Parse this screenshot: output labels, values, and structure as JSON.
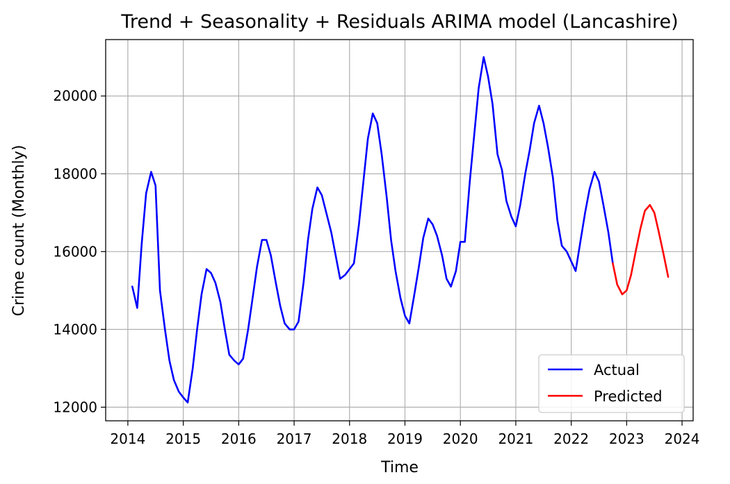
{
  "chart_data": {
    "type": "line",
    "title": "Trend + Seasonality + Residuals ARIMA model (Lancashire)",
    "xlabel": "Time",
    "ylabel": "Crime count (Monthly)",
    "xlim": [
      2013.6,
      2024.2
    ],
    "ylim": [
      11650,
      21450
    ],
    "xticks": [
      2014,
      2015,
      2016,
      2017,
      2018,
      2019,
      2020,
      2021,
      2022,
      2023,
      2024
    ],
    "xtick_labels": [
      "2014",
      "2015",
      "2016",
      "2017",
      "2018",
      "2019",
      "2020",
      "2021",
      "2022",
      "2023",
      "2024"
    ],
    "yticks": [
      12000,
      14000,
      16000,
      18000,
      20000
    ],
    "ytick_labels": [
      "12000",
      "14000",
      "16000",
      "18000",
      "20000"
    ],
    "grid": true,
    "legend_position": "lower-right",
    "series": [
      {
        "name": "Actual",
        "color": "#0000ff",
        "x": [
          2014.08,
          2014.17,
          2014.25,
          2014.33,
          2014.42,
          2014.5,
          2014.58,
          2014.67,
          2014.75,
          2014.83,
          2014.92,
          2015.0,
          2015.08,
          2015.17,
          2015.25,
          2015.33,
          2015.42,
          2015.5,
          2015.58,
          2015.67,
          2015.75,
          2015.83,
          2015.92,
          2016.0,
          2016.08,
          2016.17,
          2016.25,
          2016.33,
          2016.42,
          2016.5,
          2016.58,
          2016.67,
          2016.75,
          2016.83,
          2016.92,
          2017.0,
          2017.08,
          2017.17,
          2017.25,
          2017.33,
          2017.42,
          2017.5,
          2017.58,
          2017.67,
          2017.75,
          2017.83,
          2017.92,
          2018.0,
          2018.08,
          2018.17,
          2018.25,
          2018.33,
          2018.42,
          2018.5,
          2018.58,
          2018.67,
          2018.75,
          2018.83,
          2018.92,
          2019.0,
          2019.08,
          2019.17,
          2019.25,
          2019.33,
          2019.42,
          2019.5,
          2019.58,
          2019.67,
          2019.75,
          2019.83,
          2019.92,
          2020.0,
          2020.08,
          2020.17,
          2020.25,
          2020.33,
          2020.42,
          2020.5,
          2020.58,
          2020.67,
          2020.75,
          2020.83,
          2020.92,
          2021.0,
          2021.08,
          2021.17,
          2021.25,
          2021.33,
          2021.42,
          2021.5,
          2021.58,
          2021.67,
          2021.75,
          2021.83,
          2021.92,
          2022.0,
          2022.08,
          2022.17,
          2022.25,
          2022.33,
          2022.42,
          2022.5,
          2022.58,
          2022.67,
          2022.75
        ],
        "values": [
          15100,
          14550,
          16200,
          17500,
          18050,
          17700,
          15000,
          14000,
          13200,
          12700,
          12400,
          12250,
          12120,
          13000,
          14000,
          14900,
          15550,
          15450,
          15200,
          14700,
          14000,
          13350,
          13200,
          13100,
          13250,
          14000,
          14800,
          15600,
          16300,
          16300,
          15900,
          15200,
          14600,
          14150,
          14000,
          14000,
          14200,
          15200,
          16300,
          17100,
          17650,
          17450,
          17000,
          16500,
          15900,
          15300,
          15400,
          15550,
          15700,
          16700,
          17800,
          18900,
          19550,
          19300,
          18500,
          17400,
          16300,
          15500,
          14800,
          14350,
          14150,
          14900,
          15600,
          16350,
          16850,
          16700,
          16400,
          15900,
          15300,
          15100,
          15500,
          16250,
          16250,
          17800,
          19000,
          20200,
          21000,
          20500,
          19800,
          18500,
          18100,
          17300,
          16900,
          16650,
          17200,
          18000,
          18600,
          19300,
          19750,
          19300,
          18700,
          17900,
          16800,
          16150,
          16000,
          15750,
          15500,
          16300,
          17000,
          17600,
          18050,
          17800,
          17200,
          16500,
          15700
        ]
      },
      {
        "name": "Predicted",
        "color": "#ff0000",
        "x": [
          2022.75,
          2022.83,
          2022.92,
          2023.0,
          2023.08,
          2023.17,
          2023.25,
          2023.33,
          2023.42,
          2023.5,
          2023.58,
          2023.67,
          2023.75
        ],
        "values": [
          15700,
          15150,
          14900,
          15000,
          15400,
          16050,
          16600,
          17050,
          17200,
          17000,
          16500,
          15900,
          15350
        ]
      }
    ]
  }
}
